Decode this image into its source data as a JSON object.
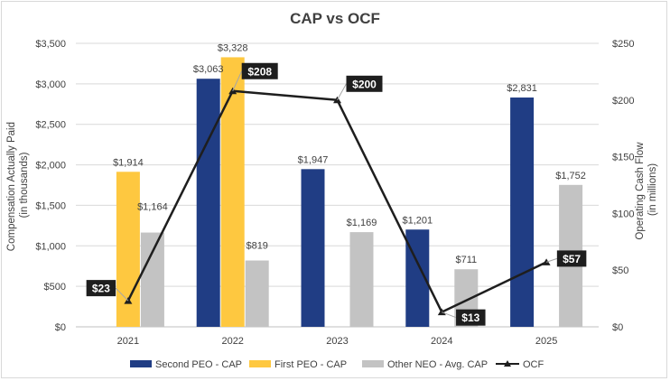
{
  "chart_data": {
    "type": "bar",
    "title": "CAP vs OCF",
    "categories": [
      "2021",
      "2022",
      "2023",
      "2024",
      "2025"
    ],
    "ylabel": [
      "Compensation Actually Paid",
      "(in thousands)"
    ],
    "y2label": [
      "Operating Cash Flow",
      "(in millions)"
    ],
    "ylim": [
      0,
      3500
    ],
    "y2lim": [
      0,
      250
    ],
    "yticks": [
      "$0",
      "$500",
      "$1,000",
      "$1,500",
      "$2,000",
      "$2,500",
      "$3,000",
      "$3,500"
    ],
    "y2ticks": [
      "$0",
      "$50",
      "$100",
      "$150",
      "$200",
      "$250"
    ],
    "series": [
      {
        "name": "Second PEO - CAP",
        "type": "bar",
        "color": "#203d84",
        "values": [
          null,
          3063,
          1947,
          1201,
          2831
        ],
        "labels": [
          "",
          "$3,063",
          "$1,947",
          "$1,201",
          "$2,831"
        ]
      },
      {
        "name": "First PEO - CAP",
        "type": "bar",
        "color": "#fec840",
        "values": [
          1914,
          3328,
          null,
          null,
          null
        ],
        "labels": [
          "$1,914",
          "$3,328",
          "",
          "",
          ""
        ]
      },
      {
        "name": "Other NEO - Avg. CAP",
        "type": "bar",
        "color": "#c3c3c3",
        "values": [
          1164,
          819,
          1169,
          711,
          1752
        ],
        "labels": [
          "$1,164",
          "$819",
          "$1,169",
          "$711",
          "$1,752"
        ]
      },
      {
        "name": "OCF",
        "type": "line",
        "axis": "secondary",
        "color": "#1e1e1e",
        "values": [
          23,
          208,
          200,
          13,
          57
        ],
        "labels": [
          "$23",
          "$208",
          "$200",
          "$13",
          "$57"
        ]
      }
    ]
  }
}
